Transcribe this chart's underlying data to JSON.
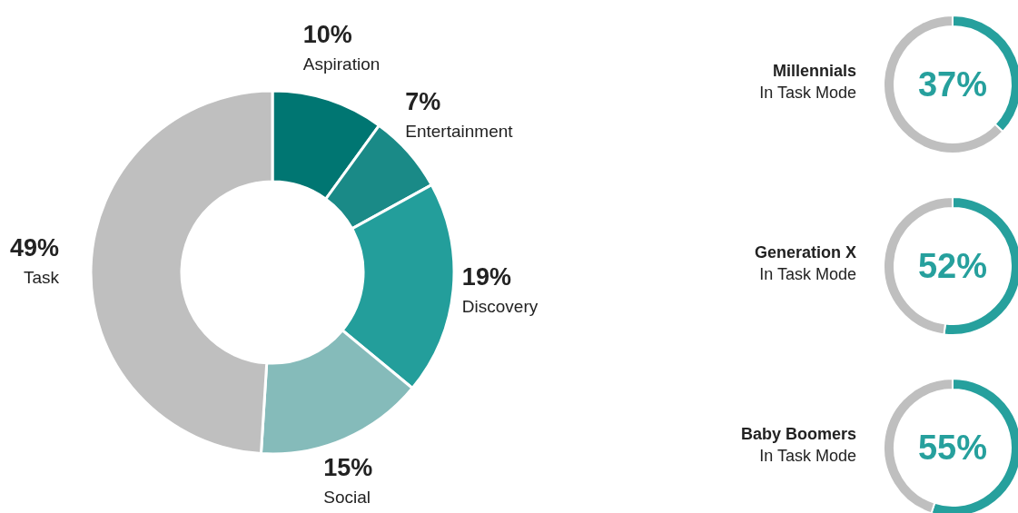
{
  "chart_data": [
    {
      "type": "donut",
      "categories": [
        "Aspiration",
        "Entertainment",
        "Discovery",
        "Social",
        "Task"
      ],
      "values": [
        10,
        7,
        19,
        15,
        49
      ],
      "colors": [
        "#007672",
        "#1a8a87",
        "#239e9b",
        "#85bbba",
        "#bfbfbf"
      ],
      "value_labels": [
        "10%",
        "7%",
        "19%",
        "15%",
        "49%"
      ]
    },
    {
      "type": "donut",
      "title": "Millennials",
      "subtitle": "In Task Mode",
      "categories": [
        null,
        null
      ],
      "values": [
        37,
        63
      ],
      "colors": [
        "#26a09d",
        "#bfbfbf"
      ],
      "value_labels": [
        "37%",
        null
      ]
    },
    {
      "type": "donut",
      "title": "Generation X",
      "subtitle": "In Task Mode",
      "categories": [
        null,
        null
      ],
      "values": [
        52,
        48
      ],
      "colors": [
        "#26a09d",
        "#bfbfbf"
      ],
      "value_labels": [
        "52%",
        null
      ]
    },
    {
      "type": "donut",
      "title": "Baby Boomers",
      "subtitle": "In Task Mode",
      "categories": [
        null,
        null
      ],
      "values": [
        55,
        45
      ],
      "colors": [
        "#26a09d",
        "#bfbfbf"
      ],
      "value_labels": [
        "55%",
        null
      ]
    }
  ]
}
